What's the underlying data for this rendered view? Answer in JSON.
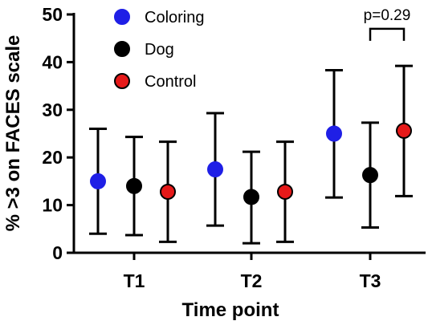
{
  "chart_data": {
    "type": "scatter",
    "title": "",
    "xlabel": "Time point",
    "ylabel": "% >3 on FACES scale",
    "ylim": [
      0,
      50
    ],
    "yticks": [
      0,
      10,
      20,
      30,
      40,
      50
    ],
    "categories": [
      "T1",
      "T2",
      "T3"
    ],
    "grid": false,
    "legend_position": "top-left",
    "series": [
      {
        "name": "Coloring",
        "color": "#1f1fe6",
        "values": [
          15,
          17.5,
          25
        ],
        "error_low": [
          4,
          5.7,
          11.6
        ],
        "error_high": [
          26,
          29.3,
          38.3
        ]
      },
      {
        "name": "Dog",
        "color": "#000000",
        "values": [
          14,
          11.7,
          16.3
        ],
        "error_low": [
          3.7,
          2,
          5.3
        ],
        "error_high": [
          24.3,
          21.2,
          27.3
        ]
      },
      {
        "name": "Control",
        "color": "#e61919",
        "values": [
          12.8,
          12.8,
          25.6
        ],
        "error_low": [
          2.3,
          2.3,
          11.9
        ],
        "error_high": [
          23.3,
          23.3,
          39.2
        ]
      }
    ],
    "annotations": [
      {
        "text": "p=0.29",
        "category": "T3",
        "series_from": "Dog",
        "series_to": "Control",
        "y": 47
      }
    ]
  }
}
